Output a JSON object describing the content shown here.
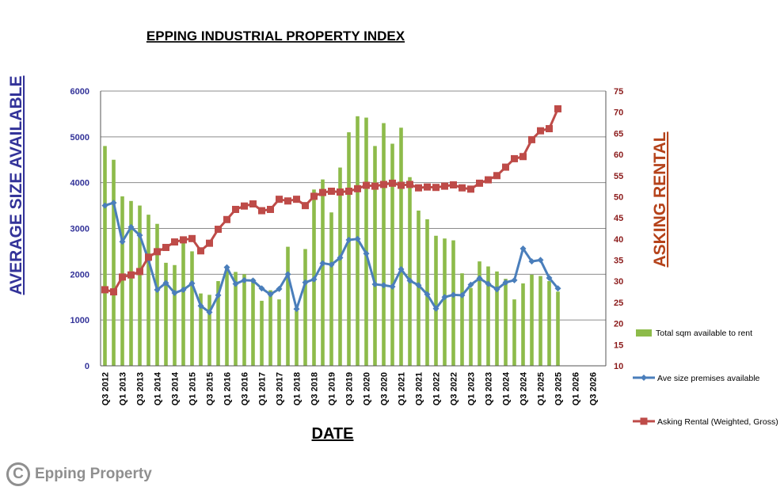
{
  "chart_data": {
    "type": "bar",
    "title": "EPPING INDUSTRIAL PROPERTY INDEX",
    "xlabel": "DATE",
    "ylabel_left": "AVERAGE  SIZE AVAILABLE",
    "ylabel_right": "ASKING RENTAL",
    "ylim_left": [
      0,
      6000
    ],
    "yticks_left": [
      "0",
      "1000",
      "2000",
      "3000",
      "4000",
      "5000",
      "6000"
    ],
    "ylim_right": [
      10,
      75
    ],
    "yticks_right": [
      "10",
      "15",
      "20",
      "25",
      "30",
      "35",
      "40",
      "45",
      "50",
      "55",
      "60",
      "65",
      "70",
      "75"
    ],
    "grid": true,
    "legend_position": "right",
    "x_tick_labels": [
      "Q3 2012",
      "Q1 2013",
      "Q3 2013",
      "Q1 2014",
      "Q3 2014",
      "Q1 2015",
      "Q3 2015",
      "Q1 2016",
      "Q3 2016",
      "Q1 2017",
      "Q3 2017",
      "Q1 2018",
      "Q3 2018",
      "Q1 2019",
      "Q3 2019",
      "Q1 2020",
      "Q3 2020",
      "Q1 2021",
      "Q3 2021",
      "Q1 2022",
      "Q3 2022",
      "Q1 2023",
      "Q3 2023",
      "Q1 2024",
      "Q3 2024",
      "Q1 2025",
      "Q3 2025",
      "Q1 2026",
      "Q3 2026"
    ],
    "series": [
      {
        "name": "Total sqm available to rent",
        "kind": "bar",
        "axis": "left",
        "color": "#8dbb4a",
        "values": [
          4800,
          4500,
          3700,
          3600,
          3500,
          3300,
          3100,
          2250,
          2200,
          2700,
          2500,
          1580,
          1550,
          1850,
          2150,
          2050,
          2000,
          1900,
          1420,
          1650,
          1450,
          2600,
          1200,
          2550,
          3850,
          4070,
          3350,
          4330,
          5100,
          5450,
          5420,
          4800,
          5300,
          4850,
          5200,
          4120,
          3390,
          3200,
          2840,
          2780,
          2740,
          2020,
          1700,
          2280,
          2170,
          2060,
          1900,
          1450,
          1800,
          1990,
          1960,
          1850,
          1620
        ]
      },
      {
        "name": "Ave size premises available",
        "kind": "line",
        "axis": "left",
        "color": "#4a7ebb",
        "marker": "diamond",
        "values": [
          3500,
          3560,
          2710,
          3030,
          2850,
          2310,
          1660,
          1810,
          1590,
          1660,
          1800,
          1310,
          1170,
          1540,
          2150,
          1790,
          1870,
          1860,
          1690,
          1560,
          1680,
          2000,
          1240,
          1820,
          1890,
          2240,
          2210,
          2360,
          2750,
          2770,
          2450,
          1780,
          1760,
          1730,
          2110,
          1860,
          1760,
          1560,
          1250,
          1500,
          1550,
          1540,
          1770,
          1910,
          1790,
          1670,
          1820,
          1870,
          2560,
          2280,
          2310,
          1920,
          1690
        ]
      },
      {
        "name": "Asking Rental (Weighted, Gross)",
        "kind": "line",
        "axis": "right",
        "color": "#be4b48",
        "marker": "square",
        "values": [
          28,
          27.5,
          31,
          31.5,
          32.3,
          35.7,
          37,
          38,
          39.3,
          39.8,
          40.1,
          37.2,
          39,
          42.3,
          44.6,
          47,
          47.8,
          48.3,
          46.7,
          47,
          49.4,
          49,
          49.4,
          47.9,
          50.1,
          51,
          51.3,
          51.1,
          51.3,
          51.9,
          52.7,
          52.5,
          52.9,
          53.2,
          52.7,
          52.9,
          52.1,
          52.3,
          52.2,
          52.5,
          52.8,
          52.1,
          51.8,
          53.2,
          54,
          55,
          57,
          59,
          59.5,
          63.5,
          65.6,
          66.1,
          70.8
        ]
      }
    ]
  },
  "branding": {
    "copyright_symbol": "C",
    "name": "Epping Property"
  }
}
